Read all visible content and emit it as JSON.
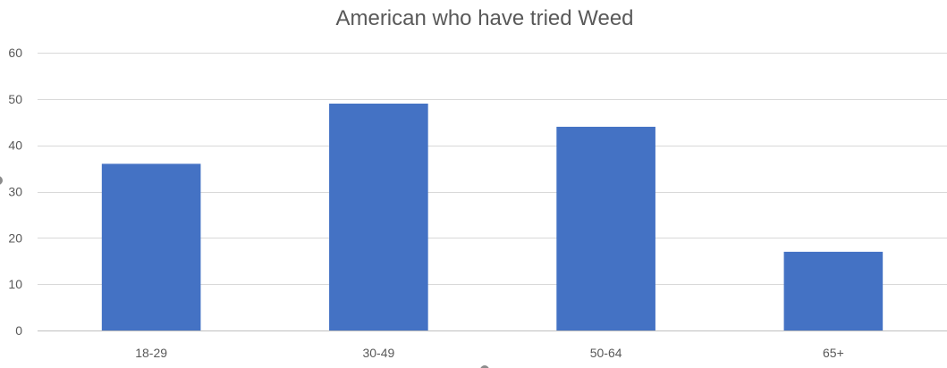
{
  "chart_data": {
    "type": "bar",
    "title": "American who have tried Weed",
    "categories": [
      "18-29",
      "30-49",
      "50-64",
      "65+"
    ],
    "values": [
      36,
      49,
      44,
      17
    ],
    "xlabel": "",
    "ylabel": "",
    "ylim": [
      0,
      60
    ],
    "yticks": [
      0,
      10,
      20,
      30,
      40,
      50,
      60
    ],
    "grid": true,
    "legend": "none",
    "bar_color": "#4472c4"
  }
}
